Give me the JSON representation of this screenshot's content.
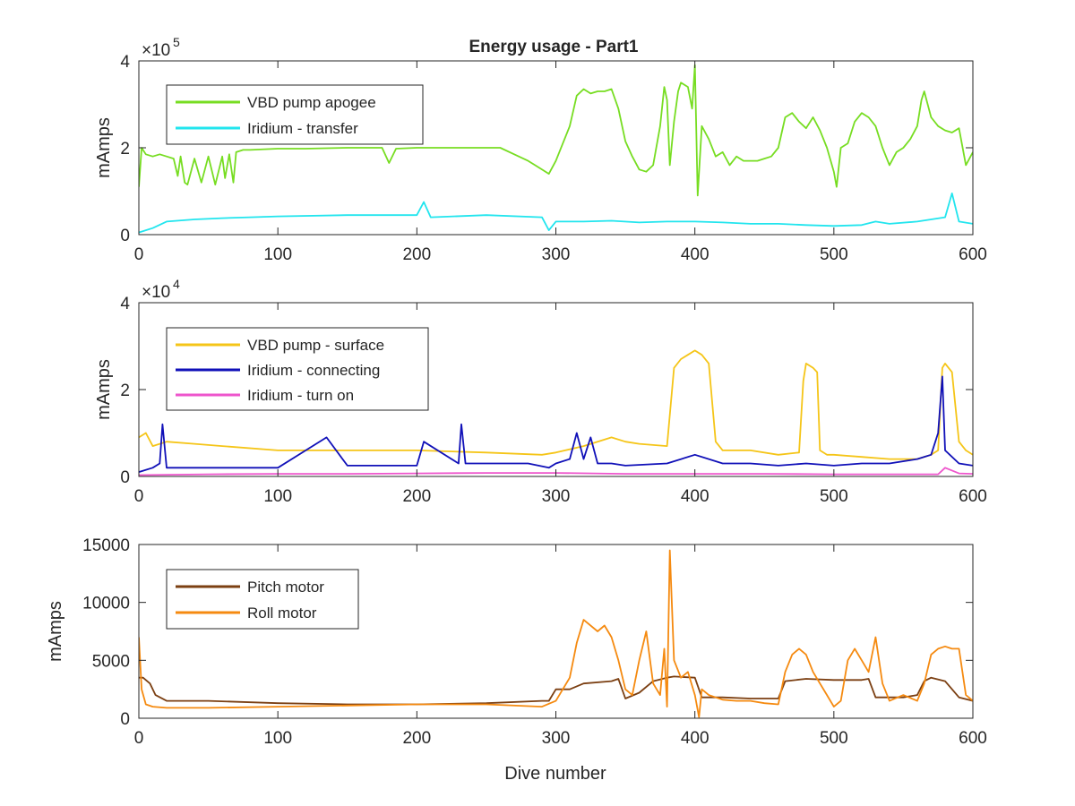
{
  "chart_data": [
    {
      "type": "line",
      "title": "Energy usage - Part1",
      "xlabel": "",
      "ylabel": "mAmps",
      "xlim": [
        0,
        600
      ],
      "ylim": [
        0,
        400000
      ],
      "xticks": [
        0,
        100,
        200,
        300,
        400,
        500,
        600
      ],
      "yticks": [
        0,
        2,
        4
      ],
      "yexponent": "5",
      "legend": "top-left",
      "grid": false,
      "series": [
        {
          "name": "VBD pump apogee",
          "color": "#77dd22",
          "x": [
            0,
            2,
            5,
            10,
            15,
            20,
            25,
            28,
            30,
            33,
            35,
            40,
            45,
            50,
            55,
            60,
            62,
            65,
            68,
            70,
            75,
            80,
            100,
            120,
            150,
            175,
            180,
            185,
            200,
            225,
            250,
            260,
            270,
            280,
            285,
            290,
            295,
            300,
            305,
            310,
            315,
            320,
            325,
            330,
            335,
            340,
            345,
            350,
            355,
            360,
            365,
            370,
            375,
            378,
            380,
            382,
            385,
            388,
            390,
            395,
            398,
            400,
            402,
            405,
            410,
            415,
            420,
            425,
            430,
            435,
            440,
            445,
            450,
            455,
            460,
            465,
            470,
            475,
            480,
            485,
            490,
            495,
            500,
            502,
            505,
            510,
            515,
            520,
            525,
            530,
            535,
            540,
            545,
            550,
            555,
            560,
            563,
            565,
            570,
            575,
            580,
            585,
            590,
            595,
            600
          ],
          "values": [
            110000,
            200000,
            185000,
            180000,
            185000,
            180000,
            175000,
            135000,
            180000,
            120000,
            115000,
            175000,
            120000,
            180000,
            115000,
            180000,
            130000,
            185000,
            120000,
            190000,
            195000,
            195000,
            198000,
            198000,
            200000,
            200000,
            165000,
            198000,
            200000,
            200000,
            200000,
            200000,
            185000,
            170000,
            160000,
            150000,
            140000,
            170000,
            210000,
            250000,
            320000,
            335000,
            325000,
            330000,
            330000,
            335000,
            290000,
            215000,
            180000,
            150000,
            145000,
            160000,
            250000,
            340000,
            310000,
            160000,
            260000,
            330000,
            350000,
            340000,
            290000,
            390000,
            90000,
            250000,
            220000,
            180000,
            190000,
            160000,
            180000,
            170000,
            170000,
            170000,
            175000,
            180000,
            200000,
            270000,
            280000,
            260000,
            245000,
            270000,
            240000,
            200000,
            145000,
            110000,
            200000,
            210000,
            260000,
            280000,
            270000,
            250000,
            200000,
            160000,
            190000,
            200000,
            220000,
            250000,
            310000,
            330000,
            270000,
            250000,
            240000,
            235000,
            245000,
            160000,
            190000
          ]
        },
        {
          "name": "Iridium - transfer",
          "color": "#22e5ee",
          "x": [
            0,
            10,
            20,
            40,
            60,
            80,
            100,
            150,
            200,
            205,
            210,
            250,
            290,
            295,
            300,
            320,
            340,
            360,
            380,
            400,
            420,
            440,
            460,
            480,
            500,
            520,
            530,
            540,
            560,
            580,
            585,
            590,
            600
          ],
          "values": [
            5000,
            15000,
            30000,
            35000,
            38000,
            40000,
            42000,
            45000,
            45000,
            75000,
            40000,
            45000,
            40000,
            10000,
            30000,
            30000,
            32000,
            28000,
            30000,
            30000,
            28000,
            25000,
            25000,
            22000,
            20000,
            22000,
            30000,
            25000,
            30000,
            40000,
            95000,
            30000,
            25000
          ]
        }
      ]
    },
    {
      "type": "line",
      "title": "",
      "xlabel": "",
      "ylabel": "mAmps",
      "xlim": [
        0,
        600
      ],
      "ylim": [
        0,
        40000
      ],
      "xticks": [
        0,
        100,
        200,
        300,
        400,
        500,
        600
      ],
      "yticks": [
        0,
        2,
        4
      ],
      "yexponent": "4",
      "legend": "top-left",
      "grid": false,
      "series": [
        {
          "name": "VBD pump - surface",
          "color": "#f5c518",
          "x": [
            0,
            5,
            10,
            20,
            40,
            60,
            100,
            150,
            200,
            250,
            290,
            300,
            320,
            340,
            350,
            360,
            380,
            385,
            390,
            395,
            400,
            405,
            410,
            415,
            420,
            440,
            460,
            475,
            478,
            480,
            485,
            488,
            490,
            495,
            500,
            520,
            540,
            560,
            570,
            575,
            578,
            580,
            585,
            590,
            595,
            600
          ],
          "values": [
            9000,
            10000,
            7000,
            8000,
            7500,
            7000,
            6000,
            6000,
            6000,
            5500,
            5000,
            5500,
            7000,
            9000,
            8000,
            7500,
            7000,
            25000,
            27000,
            28000,
            29000,
            28000,
            26000,
            8000,
            6000,
            6000,
            5000,
            5500,
            22000,
            26000,
            25000,
            24000,
            6000,
            5000,
            5000,
            4500,
            4000,
            4000,
            5000,
            6000,
            25000,
            26000,
            24000,
            8000,
            6000,
            5000
          ]
        },
        {
          "name": "Iridium - connecting",
          "color": "#1010b8",
          "x": [
            0,
            10,
            15,
            17,
            20,
            50,
            100,
            135,
            150,
            200,
            205,
            230,
            232,
            235,
            260,
            280,
            295,
            300,
            310,
            315,
            320,
            325,
            330,
            340,
            350,
            380,
            400,
            420,
            440,
            460,
            480,
            500,
            520,
            540,
            560,
            570,
            575,
            578,
            580,
            590,
            600
          ],
          "values": [
            1000,
            2000,
            3000,
            12000,
            2000,
            2000,
            2000,
            9000,
            2500,
            2500,
            8000,
            3000,
            12000,
            3000,
            3000,
            3000,
            2000,
            3000,
            4000,
            10000,
            4000,
            9000,
            3000,
            3000,
            2500,
            3000,
            5000,
            3000,
            3000,
            2500,
            3000,
            2500,
            3000,
            3000,
            4000,
            5000,
            10000,
            23000,
            6000,
            3000,
            2500
          ]
        },
        {
          "name": "Iridium - turn on",
          "color": "#ee55cc",
          "x": [
            0,
            50,
            100,
            150,
            200,
            250,
            300,
            350,
            400,
            450,
            500,
            550,
            575,
            580,
            590,
            600
          ],
          "values": [
            300,
            500,
            600,
            600,
            700,
            800,
            800,
            600,
            600,
            600,
            500,
            500,
            500,
            2000,
            700,
            600
          ]
        }
      ]
    },
    {
      "type": "line",
      "title": "",
      "xlabel": "Dive number",
      "ylabel": "mAmps",
      "xlim": [
        0,
        600
      ],
      "ylim": [
        0,
        15000
      ],
      "xticks": [
        0,
        100,
        200,
        300,
        400,
        500,
        600
      ],
      "yticks": [
        0,
        5000,
        10000,
        15000
      ],
      "legend": "top-left",
      "grid": false,
      "series": [
        {
          "name": "Pitch motor",
          "color": "#7b3f12",
          "x": [
            0,
            3,
            8,
            12,
            20,
            50,
            100,
            150,
            200,
            250,
            290,
            295,
            300,
            310,
            320,
            340,
            345,
            350,
            360,
            370,
            380,
            385,
            400,
            405,
            420,
            440,
            460,
            465,
            480,
            500,
            520,
            525,
            530,
            550,
            560,
            565,
            570,
            580,
            590,
            600
          ],
          "values": [
            3500,
            3500,
            3000,
            2000,
            1500,
            1500,
            1300,
            1200,
            1200,
            1300,
            1500,
            1500,
            2500,
            2500,
            3000,
            3200,
            3400,
            1700,
            2200,
            3200,
            3500,
            3600,
            3500,
            1800,
            1800,
            1700,
            1700,
            3200,
            3400,
            3300,
            3300,
            3400,
            1800,
            1800,
            2000,
            3200,
            3500,
            3200,
            1800,
            1500
          ]
        },
        {
          "name": "Roll motor",
          "color": "#f58a10",
          "x": [
            0,
            2,
            5,
            10,
            20,
            50,
            100,
            150,
            200,
            250,
            290,
            300,
            310,
            315,
            320,
            330,
            335,
            340,
            345,
            350,
            355,
            360,
            365,
            370,
            375,
            378,
            380,
            382,
            385,
            390,
            395,
            400,
            403,
            405,
            410,
            415,
            420,
            430,
            440,
            450,
            460,
            465,
            470,
            475,
            480,
            485,
            490,
            495,
            500,
            505,
            510,
            515,
            520,
            525,
            530,
            535,
            540,
            550,
            560,
            565,
            570,
            575,
            580,
            585,
            590,
            595,
            600
          ],
          "values": [
            7000,
            2500,
            1200,
            1000,
            900,
            900,
            1000,
            1100,
            1200,
            1200,
            1000,
            1500,
            3500,
            6500,
            8500,
            7500,
            8000,
            7000,
            5000,
            2500,
            2000,
            5000,
            7500,
            3000,
            2000,
            6000,
            1000,
            14500,
            5000,
            3500,
            4000,
            2000,
            100,
            2500,
            2000,
            1800,
            1600,
            1500,
            1500,
            1300,
            1200,
            4000,
            5500,
            6000,
            5500,
            4000,
            3000,
            2000,
            1000,
            1500,
            5000,
            6000,
            5000,
            4000,
            7000,
            3000,
            1500,
            2000,
            1500,
            3000,
            5500,
            6000,
            6200,
            6000,
            6000,
            2000,
            1500
          ]
        }
      ]
    }
  ]
}
